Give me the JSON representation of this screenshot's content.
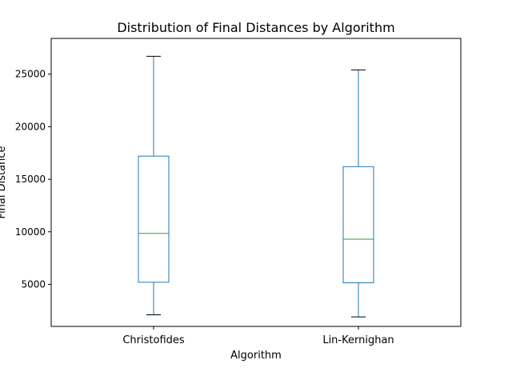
{
  "chart_data": {
    "type": "boxplot",
    "title": "Distribution of Final Distances by Algorithm",
    "xlabel": "Algorithm",
    "ylabel": "Final Distance",
    "ylim": [
      1000,
      28400
    ],
    "yticks": [
      5000,
      10000,
      15000,
      20000,
      25000
    ],
    "ytick_labels": [
      "5000",
      "10000",
      "15000",
      "20000",
      "25000"
    ],
    "grid": false,
    "categories": [
      "Christofides",
      "Lin-Kernighan"
    ],
    "boxes": [
      {
        "category": "Christofides",
        "whisker_low": 2100,
        "q1": 5200,
        "median": 9850,
        "q3": 17200,
        "whisker_high": 26700
      },
      {
        "category": "Lin-Kernighan",
        "whisker_low": 1900,
        "q1": 5150,
        "median": 9300,
        "q3": 16200,
        "whisker_high": 25400
      }
    ],
    "colors": {
      "box": "#1f77b4",
      "median": "#2ca02c",
      "cap": "#000000",
      "axis": "#000000"
    }
  }
}
